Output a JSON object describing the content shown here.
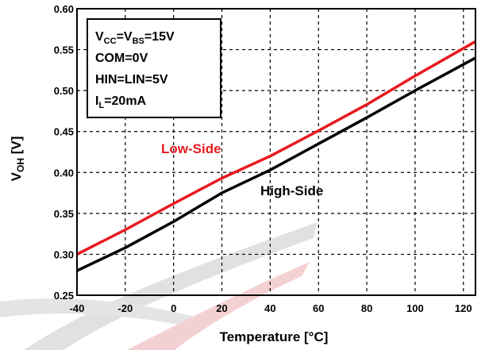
{
  "chart_data": {
    "type": "line",
    "title": "",
    "xlabel": "Temperature [°C]",
    "ylabel_main": "V",
    "ylabel_sub": "OH",
    "ylabel_unit": " [V]",
    "xlim": [
      -40,
      125
    ],
    "ylim": [
      0.25,
      0.6
    ],
    "xticks": [
      -40,
      -20,
      0,
      20,
      40,
      60,
      80,
      100,
      120
    ],
    "xtick_labels": [
      "-40",
      "-20",
      "0",
      "20",
      "40",
      "60",
      "80",
      "100",
      "120"
    ],
    "yticks": [
      0.25,
      0.3,
      0.35,
      0.4,
      0.45,
      0.5,
      0.55,
      0.6
    ],
    "ytick_labels": [
      "0.25",
      "0.30",
      "0.35",
      "0.40",
      "0.45",
      "0.50",
      "0.55",
      "0.60"
    ],
    "grid": true,
    "series": [
      {
        "name": "Low-Side",
        "color": "#e8191f",
        "x": [
          -40,
          -20,
          0,
          20,
          40,
          60,
          80,
          100,
          125
        ],
        "values": [
          0.3,
          0.33,
          0.362,
          0.393,
          0.42,
          0.451,
          0.483,
          0.518,
          0.56
        ]
      },
      {
        "name": "High-Side",
        "color": "#000000",
        "x": [
          -40,
          -20,
          0,
          20,
          40,
          60,
          80,
          100,
          125
        ],
        "values": [
          0.28,
          0.308,
          0.34,
          0.375,
          0.403,
          0.435,
          0.467,
          0.5,
          0.54
        ]
      }
    ],
    "conditions": [
      {
        "main": "V",
        "sub1": "CC",
        "mid": "=V",
        "sub2": "BS",
        "tail": "=15V"
      },
      {
        "main": "COM=0V"
      },
      {
        "main": "HIN=LIN=5V"
      },
      {
        "main": "I",
        "sub1": "L",
        "tail": "=20mA"
      }
    ]
  }
}
